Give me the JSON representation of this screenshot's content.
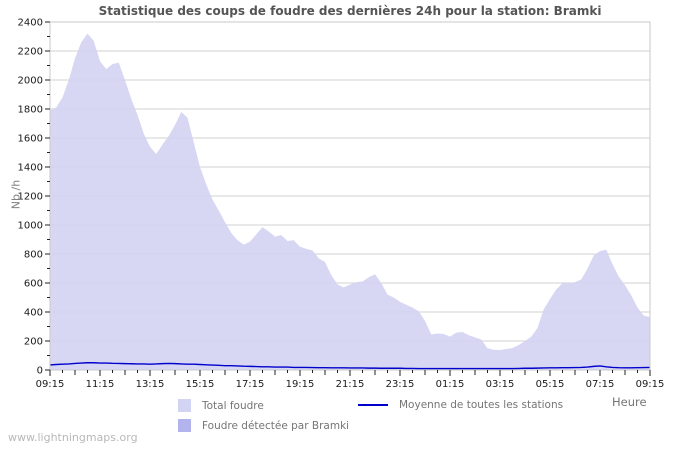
{
  "title": "Statistique des coups de foudre des dernières 24h pour la station: Bramki",
  "watermark": "www.lightningmaps.org",
  "colors": {
    "total_fill": "#d3d3f3",
    "bramki_fill": "#b3b3ee",
    "moyenne_line": "#0000cc",
    "gridline": "#d2d2d2",
    "plot_border": "#c8c8c8",
    "tick": "#222222",
    "axis_text": "#1a1a1a",
    "muted_text": "#757575",
    "title_text": "#555555",
    "watermark_text": "#b8b8b8",
    "background": "#ffffff"
  },
  "legend": [
    {
      "label": "Total foudre",
      "type": "area"
    },
    {
      "label": "Moyenne de toutes les stations",
      "type": "line"
    },
    {
      "label": "Foudre détectée par Bramki",
      "type": "area"
    }
  ],
  "axes": {
    "xlabel": "Heure",
    "ylabel": "Nb /h"
  },
  "chart_data": {
    "type": "area",
    "title": "Statistique des coups de foudre des dernières 24h pour la station: Bramki",
    "xlabel": "Heure",
    "ylabel": "Nb /h",
    "ylim": [
      0,
      2400
    ],
    "y_tick_step": 200,
    "y_minor_step": 100,
    "grid": true,
    "legend_position": "bottom",
    "x_start": "09:15",
    "x_step_minutes": 15,
    "x_tick_labels": [
      "09:15",
      "11:15",
      "13:15",
      "15:15",
      "17:15",
      "19:15",
      "21:15",
      "23:15",
      "01:15",
      "03:15",
      "05:15",
      "07:15",
      "09:15"
    ],
    "series": [
      {
        "name": "Total foudre",
        "style": "area",
        "values": [
          1790,
          1810,
          1880,
          2000,
          2150,
          2260,
          2320,
          2270,
          2130,
          2075,
          2110,
          2120,
          2000,
          1870,
          1760,
          1630,
          1540,
          1490,
          1555,
          1615,
          1690,
          1780,
          1740,
          1570,
          1400,
          1280,
          1175,
          1100,
          1020,
          945,
          895,
          865,
          885,
          935,
          985,
          955,
          920,
          930,
          890,
          895,
          850,
          835,
          825,
          770,
          745,
          655,
          590,
          570,
          590,
          605,
          610,
          640,
          660,
          600,
          520,
          500,
          470,
          450,
          430,
          405,
          340,
          245,
          252,
          248,
          230,
          258,
          262,
          240,
          225,
          210,
          150,
          140,
          138,
          145,
          152,
          172,
          200,
          230,
          290,
          420,
          490,
          555,
          600,
          600,
          605,
          625,
          700,
          790,
          820,
          830,
          730,
          645,
          585,
          515,
          430,
          375,
          365
        ]
      },
      {
        "name": "Foudre détectée par Bramki",
        "style": "area",
        "values": [
          0,
          0,
          0,
          0,
          0,
          0,
          0,
          0,
          0,
          0,
          0,
          0,
          0,
          0,
          0,
          0,
          0,
          0,
          0,
          0,
          0,
          0,
          0,
          0,
          0,
          0,
          0,
          0,
          0,
          0,
          0,
          0,
          0,
          0,
          0,
          0,
          0,
          0,
          0,
          0,
          0,
          0,
          0,
          0,
          0,
          0,
          0,
          0,
          0,
          0,
          0,
          0,
          0,
          0,
          0,
          0,
          0,
          0,
          0,
          0,
          0,
          0,
          0,
          0,
          0,
          0,
          0,
          0,
          0,
          0,
          0,
          0,
          0,
          0,
          0,
          0,
          0,
          0,
          0,
          0,
          0,
          0,
          0,
          0,
          0,
          0,
          0,
          0,
          0,
          0,
          0,
          0,
          0,
          0,
          0,
          0,
          0
        ]
      },
      {
        "name": "Moyenne de toutes les stations",
        "style": "line",
        "values": [
          35,
          38,
          40,
          42,
          45,
          48,
          50,
          50,
          48,
          48,
          46,
          45,
          44,
          43,
          42,
          42,
          40,
          42,
          44,
          45,
          44,
          42,
          40,
          40,
          38,
          36,
          34,
          32,
          30,
          30,
          28,
          26,
          25,
          24,
          22,
          22,
          20,
          20,
          20,
          18,
          18,
          18,
          17,
          16,
          16,
          15,
          15,
          15,
          14,
          14,
          14,
          13,
          13,
          12,
          12,
          12,
          12,
          11,
          11,
          10,
          10,
          10,
          10,
          10,
          10,
          10,
          10,
          10,
          10,
          10,
          10,
          10,
          10,
          10,
          10,
          11,
          12,
          12,
          13,
          14,
          15,
          15,
          16,
          16,
          17,
          18,
          20,
          25,
          28,
          22,
          18,
          16,
          15,
          15,
          16,
          17,
          18
        ]
      }
    ]
  }
}
